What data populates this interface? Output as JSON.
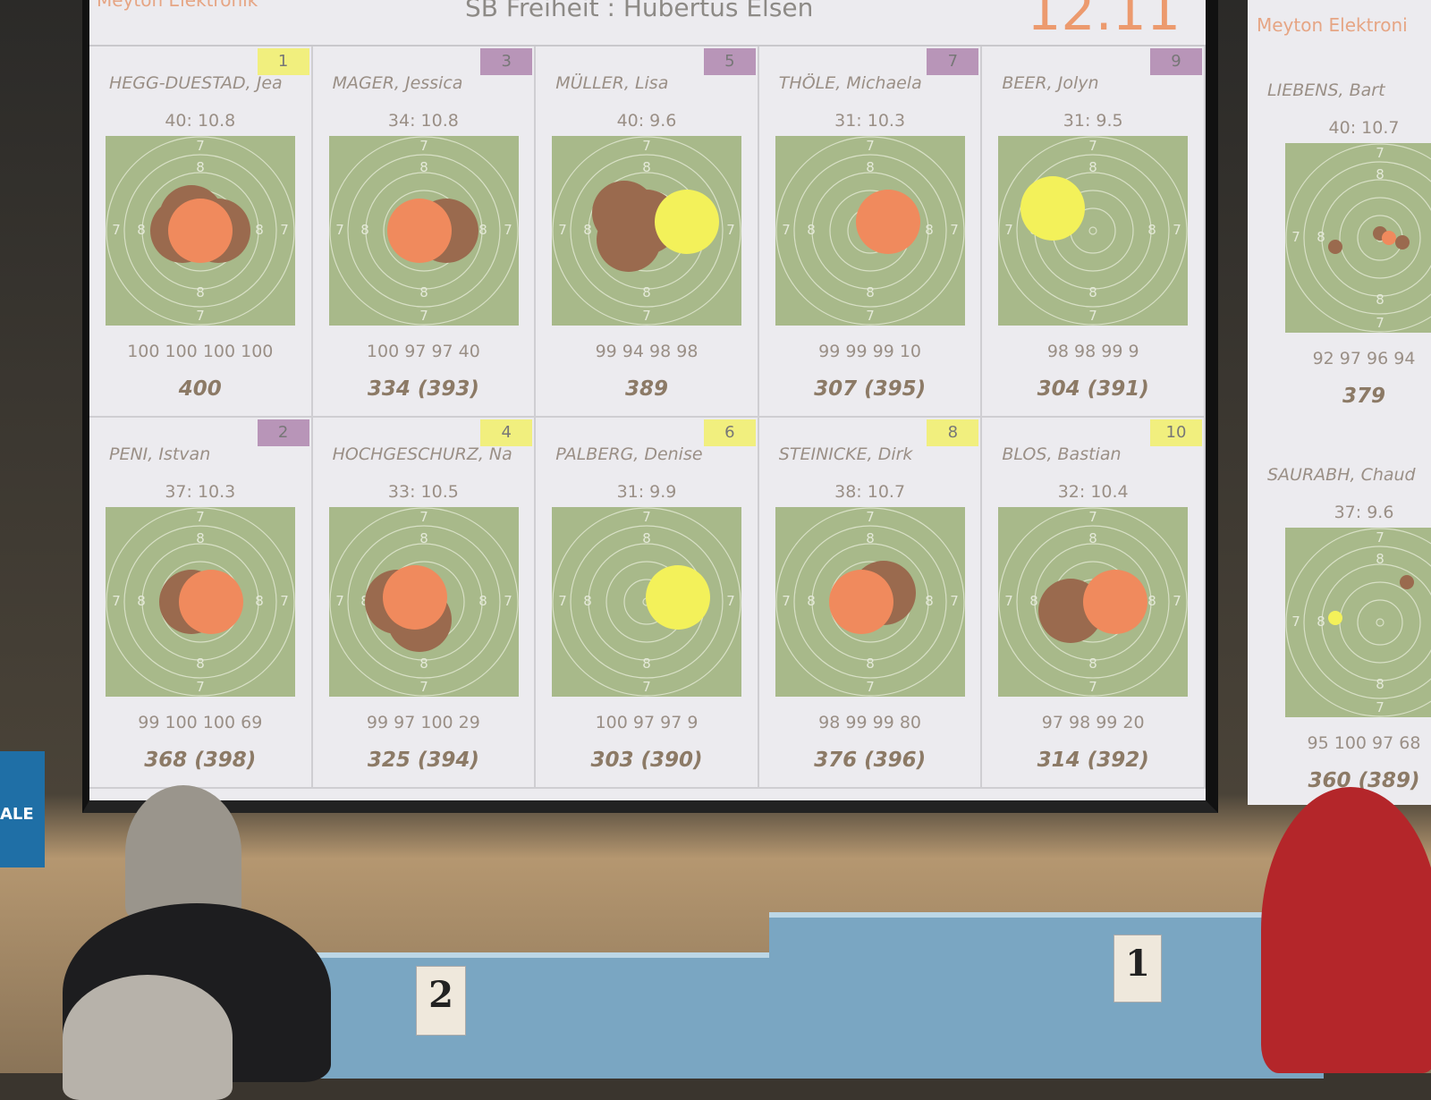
{
  "header": {
    "brand": "Meyton Elektronik",
    "title": "SB Freiheit : Hubertus Elsen",
    "time": "12.11"
  },
  "colors": {
    "target": "#a8b98a",
    "shot_current": "#f08a5d",
    "shot_prev": "#9a6a4e",
    "shot_yellow": "#f3f15a",
    "badge_yellow": "#f1ef7e",
    "badge_purple": "#b895b8"
  },
  "ring_labels": {
    "outer": "7",
    "inner": "8"
  },
  "cards": [
    {
      "badge": "1",
      "badge_color": "yellow",
      "name": "HEGG-DUESTAD, Jea",
      "last": "40:  10.8",
      "series": "100 100 100 100",
      "total": "400"
    },
    {
      "badge": "3",
      "badge_color": "purple",
      "name": "MAGER, Jessica",
      "last": "34:  10.8",
      "series": "100 97 97 40",
      "total": "334 (393)"
    },
    {
      "badge": "5",
      "badge_color": "purple",
      "name": "MÜLLER, Lisa",
      "last": "40:   9.6",
      "series": "99 94 98 98",
      "total": "389"
    },
    {
      "badge": "7",
      "badge_color": "purple",
      "name": "THÖLE, Michaela",
      "last": "31:  10.3",
      "series": "99 99 99 10",
      "total": "307 (395)"
    },
    {
      "badge": "9",
      "badge_color": "purple",
      "name": "BEER, Jolyn",
      "last": "31:   9.5",
      "series": "98 98 99 9",
      "total": "304 (391)"
    },
    {
      "badge": "2",
      "badge_color": "purple",
      "name": "PENI, Istvan",
      "last": "37:  10.3",
      "series": "99 100 100 69",
      "total": "368 (398)"
    },
    {
      "badge": "4",
      "badge_color": "yellow",
      "name": "HOCHGESCHURZ, Na",
      "last": "33:  10.5",
      "series": "99 97 100 29",
      "total": "325 (394)"
    },
    {
      "badge": "6",
      "badge_color": "yellow",
      "name": "PALBERG, Denise",
      "last": "31:   9.9",
      "series": "100 97 97 9",
      "total": "303 (390)"
    },
    {
      "badge": "8",
      "badge_color": "yellow",
      "name": "STEINICKE, Dirk",
      "last": "38:  10.7",
      "series": "98 99 99 80",
      "total": "376 (396)"
    },
    {
      "badge": "10",
      "badge_color": "yellow",
      "name": "BLOS, Bastian",
      "last": "32:  10.4",
      "series": "97 98 99 20",
      "total": "314 (392)"
    }
  ],
  "screen2": {
    "brand": "Meyton Elektroni",
    "cards": [
      {
        "name": "LIEBENS, Bart",
        "last": "40:  10.7",
        "series": "92 97 96 94",
        "total": "379"
      },
      {
        "name": "SAURABH, Chaud",
        "last": "37:   9.6",
        "series": "95 100 97 68",
        "total": "360 (389)"
      }
    ]
  },
  "podium": {
    "second": "2",
    "first": "1"
  },
  "side_sign": "ALE"
}
